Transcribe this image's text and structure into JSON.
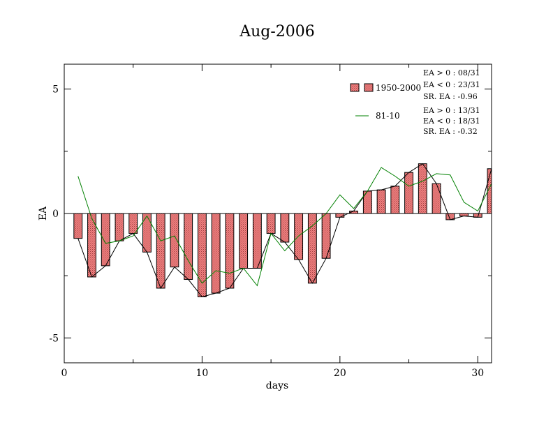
{
  "chart_data": {
    "type": "bar",
    "title": "Aug-2006",
    "xlabel": "days",
    "ylabel": "EA",
    "xlim": [
      0,
      31
    ],
    "ylim": [
      -6,
      6
    ],
    "x_ticks": [
      0,
      10,
      20,
      30
    ],
    "x_tick_labels": [
      "0",
      "10",
      "20",
      "30"
    ],
    "y_ticks": [
      -5,
      0,
      5
    ],
    "y_tick_labels": [
      "-5",
      "0",
      "5"
    ],
    "x": [
      1,
      2,
      3,
      4,
      5,
      6,
      7,
      8,
      9,
      10,
      11,
      12,
      13,
      14,
      15,
      16,
      17,
      18,
      19,
      20,
      21,
      22,
      23,
      24,
      25,
      26,
      27,
      28,
      29,
      30,
      31
    ],
    "series": [
      {
        "name": "1950-2000",
        "kind": "bar",
        "color": "#f08080",
        "values": [
          -1.0,
          -2.55,
          -2.1,
          -1.1,
          -0.8,
          -1.55,
          -3.0,
          -2.15,
          -2.65,
          -3.35,
          -3.2,
          -3.0,
          -2.2,
          -2.2,
          -0.8,
          -1.15,
          -1.85,
          -2.8,
          -1.8,
          -0.15,
          0.1,
          0.9,
          0.95,
          1.1,
          1.65,
          2.0,
          1.2,
          -0.25,
          -0.1,
          -0.15,
          1.8
        ]
      },
      {
        "name": "81-10",
        "kind": "line",
        "color": "#008000",
        "values": [
          1.5,
          -0.2,
          -1.2,
          -1.1,
          -0.9,
          -0.1,
          -1.1,
          -0.9,
          -1.9,
          -2.8,
          -2.3,
          -2.4,
          -2.2,
          -2.9,
          -0.8,
          -1.5,
          -0.9,
          -0.5,
          0.0,
          0.75,
          0.2,
          0.9,
          1.85,
          1.5,
          1.1,
          1.3,
          1.6,
          1.55,
          0.45,
          0.1,
          1.2
        ]
      }
    ],
    "legend_placement": "top-right",
    "legend": [
      {
        "label": "1950-2000",
        "stats": [
          "EA > 0 : 08/31",
          "EA < 0 : 23/31",
          "SR. EA : -0.96"
        ]
      },
      {
        "label": "81-10",
        "stats": [
          "EA > 0 : 13/31",
          "EA < 0 : 18/31",
          "SR. EA : -0.32"
        ]
      }
    ]
  }
}
